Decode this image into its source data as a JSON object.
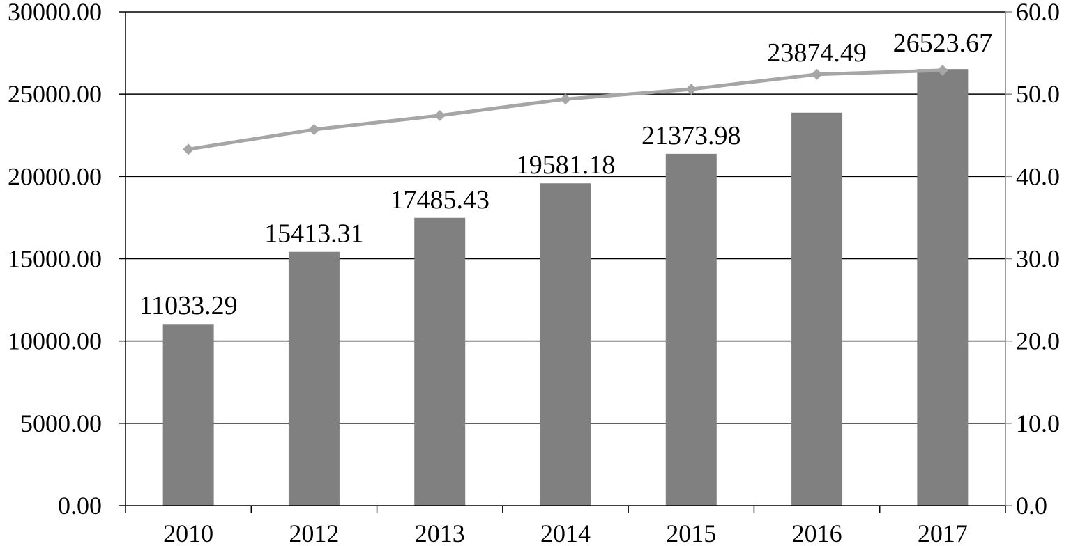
{
  "chart_data": {
    "type": "bar",
    "categories": [
      "2010",
      "2012",
      "2013",
      "2014",
      "2015",
      "2016",
      "2017"
    ],
    "series": [
      {
        "type": "bar",
        "axis": "left",
        "values": [
          11033.29,
          15413.31,
          17485.43,
          19581.18,
          21373.98,
          23874.49,
          26523.67
        ],
        "data_labels": [
          "11033.29",
          "15413.31",
          "17485.43",
          "19581.18",
          "21373.98",
          "23874.49",
          "26523.67"
        ],
        "color": "#808080"
      },
      {
        "type": "line",
        "axis": "right",
        "marker": "diamond",
        "values": [
          43.3,
          45.7,
          47.4,
          49.4,
          50.6,
          52.4,
          52.9
        ],
        "color": "#a6a6a6"
      }
    ],
    "y_left": {
      "ylim": [
        0,
        30000
      ],
      "ticks": [
        "0.00",
        "5000.00",
        "10000.00",
        "15000.00",
        "20000.00",
        "25000.00",
        "30000.00"
      ]
    },
    "y_right": {
      "ylim": [
        0,
        60
      ],
      "ticks": [
        "0.0",
        "10.0",
        "20.0",
        "30.0",
        "40.0",
        "50.0",
        "60.0"
      ]
    },
    "grid": true,
    "legend": "none"
  }
}
